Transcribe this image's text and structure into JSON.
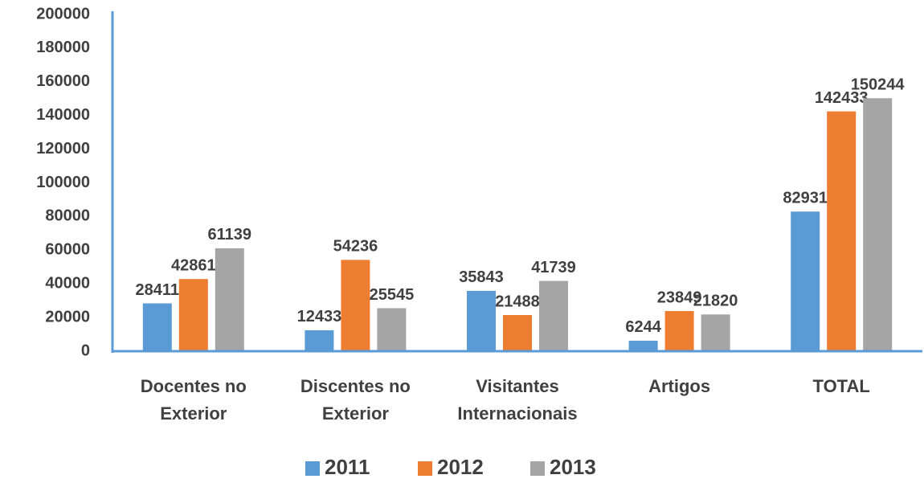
{
  "chart_data": {
    "type": "bar",
    "categories": [
      "Docentes no Exterior",
      "Discentes no Exterior",
      "Visitantes Internacionais",
      "Artigos",
      "TOTAL"
    ],
    "series": [
      {
        "name": "2011",
        "color": "#5b9bd5",
        "values": [
          28411,
          12433,
          35843,
          6244,
          82931
        ]
      },
      {
        "name": "2012",
        "color": "#ed7d31",
        "values": [
          42861,
          54236,
          21488,
          23849,
          142433
        ]
      },
      {
        "name": "2013",
        "color": "#a5a5a5",
        "values": [
          61139,
          25545,
          41739,
          21820,
          150244
        ]
      }
    ],
    "ylim": [
      0,
      200000
    ],
    "yticks": [
      0,
      20000,
      40000,
      60000,
      80000,
      100000,
      120000,
      140000,
      160000,
      180000,
      200000
    ],
    "grid": false,
    "legend": "bottom"
  }
}
